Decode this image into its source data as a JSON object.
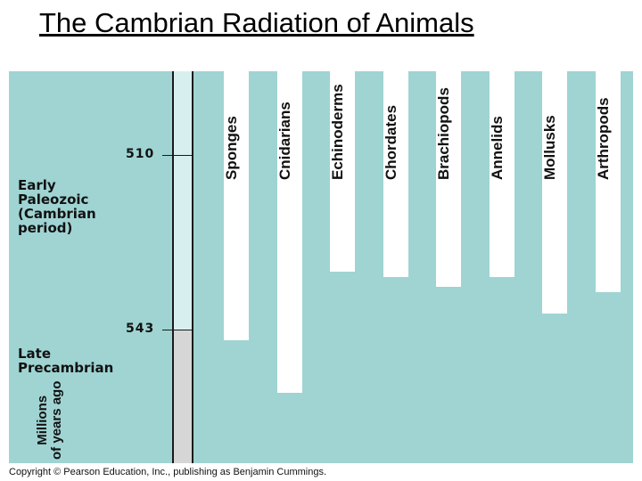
{
  "title": "The Cambrian Radiation of Animals",
  "time_axis": {
    "ticks": [
      {
        "label": "510",
        "value": 510
      },
      {
        "label": "543",
        "value": 543
      }
    ],
    "periods": [
      {
        "label": "Early\nPaleozoic\n(Cambrian\nperiod)"
      },
      {
        "label": "Late\nPrecambrian"
      }
    ],
    "ylabel": "Millions\nof years ago"
  },
  "lineages": [
    {
      "name": "Sponges",
      "origin_mya": 545
    },
    {
      "name": "Cnidarians",
      "origin_mya": 555
    },
    {
      "name": "Echinoderms",
      "origin_mya": 532
    },
    {
      "name": "Chordates",
      "origin_mya": 533
    },
    {
      "name": "Brachiopods",
      "origin_mya": 535
    },
    {
      "name": "Annelids",
      "origin_mya": 533
    },
    {
      "name": "Mollusks",
      "origin_mya": 540
    },
    {
      "name": "Arthropods",
      "origin_mya": 536
    }
  ],
  "colors": {
    "background": "#9fd4d3",
    "lineage_bar": "#ffffff",
    "cambrian_band": "#d8efef",
    "precambrian_band": "#d6d6d6"
  },
  "copyright": "Copyright © Pearson Education, Inc., publishing as Benjamin Cummings."
}
